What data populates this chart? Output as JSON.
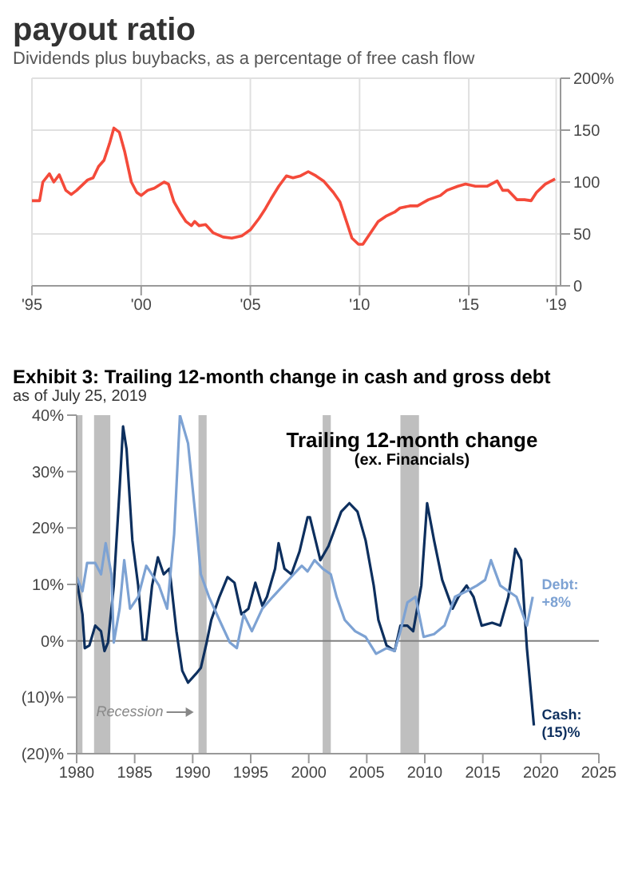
{
  "chart_data": [
    {
      "type": "line",
      "title": "payout ratio",
      "subtitle": "Dividends plus buybacks, as a percentage of free cash flow",
      "color": "#f44a3a",
      "marker": "none",
      "line_style": "solid",
      "grid": true,
      "xlim": [
        1995,
        2019.2
      ],
      "xticks": [
        {
          "value": 1995,
          "label": "'95"
        },
        {
          "value": 2000,
          "label": "'00"
        },
        {
          "value": 2005,
          "label": "'05"
        },
        {
          "value": 2010,
          "label": "'10"
        },
        {
          "value": 2015,
          "label": "'15"
        },
        {
          "value": 2019,
          "label": "'19"
        }
      ],
      "ylim": [
        0,
        200
      ],
      "yticks": [
        0,
        50,
        100,
        150,
        {
          "value": 200,
          "label": "200%"
        }
      ],
      "x": [
        1995.0,
        1995.35,
        1995.5,
        1995.8,
        1996.0,
        1996.25,
        1996.55,
        1996.8,
        1997.05,
        1997.55,
        1997.8,
        1998.05,
        1998.3,
        1998.55,
        1998.75,
        1999.0,
        1999.25,
        1999.55,
        1999.8,
        2000.0,
        2000.3,
        2000.6,
        2001.05,
        2001.25,
        2001.5,
        2001.8,
        2002.05,
        2002.3,
        2002.45,
        2002.65,
        2002.95,
        2003.3,
        2003.75,
        2004.15,
        2004.6,
        2005.0,
        2005.4,
        2005.65,
        2005.95,
        2006.3,
        2006.65,
        2006.95,
        2007.3,
        2007.65,
        2008.0,
        2008.35,
        2008.8,
        2009.1,
        2009.4,
        2009.65,
        2009.95,
        2010.15,
        2010.5,
        2010.85,
        2011.2,
        2011.6,
        2011.85,
        2012.3,
        2012.65,
        2013.15,
        2013.7,
        2014.0,
        2014.5,
        2014.85,
        2015.3,
        2015.85,
        2016.3,
        2016.55,
        2016.8,
        2017.2,
        2017.55,
        2017.85,
        2018.1,
        2018.5,
        2018.95
      ],
      "values": [
        82,
        82,
        100,
        108,
        100,
        107,
        92,
        88,
        92,
        102,
        104,
        115,
        121,
        137,
        152,
        148,
        129,
        100,
        90,
        87,
        92,
        94,
        100,
        98,
        81,
        70,
        62,
        58,
        62,
        58,
        59,
        51,
        47,
        46,
        48,
        54,
        65,
        73,
        84,
        96,
        106,
        104,
        106,
        110,
        106,
        101,
        90,
        81,
        62,
        46,
        40,
        40,
        51,
        62,
        67,
        71,
        75,
        77,
        77,
        83,
        87,
        92,
        96,
        98,
        96,
        96,
        101,
        92,
        92,
        83,
        83,
        82,
        90,
        98,
        103
      ]
    },
    {
      "type": "line",
      "title": "Exhibit 3: Trailing 12-month change in cash and gross debt",
      "subtitle": "as of July 25, 2019",
      "marker": "none",
      "line_style": "solid",
      "annotations": [
        {
          "text": "Cash: (15)%",
          "x": 2019.8,
          "y": -15
        },
        {
          "text": "Debt: +8%",
          "x": 2019.8,
          "y": 8
        },
        "Trailing 12-month change",
        "(ex. Financials)"
      ],
      "xlim": [
        1980,
        2025
      ],
      "xticks": [
        1980,
        1985,
        1990,
        1995,
        2000,
        2005,
        2010,
        2015,
        2020,
        2025
      ],
      "ylim": [
        -20,
        40
      ],
      "yticks": [
        {
          "value": -20,
          "label": "(20)%"
        },
        {
          "value": -10,
          "label": "(10)%"
        },
        {
          "value": 0,
          "label": "0%"
        },
        {
          "value": 10,
          "label": "10%"
        },
        {
          "value": 20,
          "label": "20%"
        },
        {
          "value": 30,
          "label": "30%"
        },
        {
          "value": 40,
          "label": "40%"
        }
      ],
      "ref_lines": [
        {
          "axis": "y",
          "value": 0,
          "color": "#808080"
        }
      ],
      "bands": [
        {
          "axis": "x",
          "from": 1980.0,
          "to": 1980.5,
          "color": "#bfbfbf"
        },
        {
          "axis": "x",
          "from": 1981.5,
          "to": 1982.9,
          "color": "#bfbfbf"
        },
        {
          "axis": "x",
          "from": 1990.5,
          "to": 1991.2,
          "color": "#bfbfbf",
          "label": "Recession"
        },
        {
          "axis": "x",
          "from": 2001.2,
          "to": 2001.9,
          "color": "#bfbfbf"
        },
        {
          "axis": "x",
          "from": 2007.9,
          "to": 2009.5,
          "color": "#bfbfbf"
        }
      ],
      "series": [
        {
          "color": "#0d2f5e",
          "x": [
            1980.0,
            1980.5,
            1980.7,
            1981.1,
            1981.6,
            1982.1,
            1982.4,
            1982.7,
            1983.2,
            1983.7,
            1984.0,
            1984.3,
            1984.8,
            1985.3,
            1985.7,
            1986.0,
            1986.5,
            1987.0,
            1987.5,
            1988.0,
            1988.6,
            1989.1,
            1989.6,
            1990.3,
            1990.7,
            1991.2,
            1991.6,
            1992.3,
            1993.0,
            1993.6,
            1994.2,
            1994.8,
            1995.4,
            1996.0,
            1996.4,
            1997.1,
            1997.4,
            1997.9,
            1998.5,
            1999.2,
            1999.9,
            2000.1,
            2001.0,
            2001.7,
            2002.8,
            2003.5,
            2004.2,
            2004.9,
            2005.6,
            2006.0,
            2006.7,
            2007.4,
            2007.9,
            2008.5,
            2009.0,
            2009.7,
            2010.2,
            2010.8,
            2011.5,
            2012.4,
            2012.9,
            2013.6,
            2014.2,
            2014.9,
            2015.8,
            2016.5,
            2017.2,
            2017.8,
            2018.3,
            2018.8,
            2019.2,
            2019.4
          ],
          "values": [
            10.8,
            4.7,
            -1.3,
            -0.8,
            2.7,
            1.7,
            -1.8,
            -0.3,
            9.8,
            26.9,
            38,
            34,
            17.8,
            9.8,
            0.2,
            0.2,
            9.8,
            14.8,
            11.8,
            12.8,
            1.7,
            -5.3,
            -7.4,
            -5.8,
            -4.8,
            -0.3,
            3.7,
            7.8,
            11.3,
            10.3,
            4.7,
            5.7,
            10.3,
            6.2,
            7.8,
            12.8,
            17.3,
            12.8,
            11.8,
            15.8,
            21.9,
            21.9,
            14.3,
            16.8,
            22.9,
            24.4,
            22.9,
            17.8,
            9.8,
            3.7,
            -0.8,
            -1.8,
            2.7,
            2.7,
            1.7,
            9.8,
            24.4,
            17.8,
            10.8,
            5.7,
            7.8,
            9.8,
            7.8,
            2.7,
            3.2,
            2.7,
            7.8,
            16.3,
            14.3,
            -1.3,
            -10.4,
            -15
          ]
        },
        {
          "color": "#7da2d3",
          "x": [
            1980.0,
            1980.5,
            1980.9,
            1981.6,
            1982.1,
            1982.5,
            1983.0,
            1983.2,
            1983.7,
            1984.1,
            1984.6,
            1985.3,
            1986.0,
            1987.1,
            1987.8,
            1988.4,
            1988.9,
            1989.6,
            1990.3,
            1990.7,
            1991.4,
            1992.3,
            1993.2,
            1993.8,
            1994.4,
            1995.1,
            1996.0,
            1996.9,
            1997.8,
            1998.7,
            1999.4,
            1999.9,
            2000.5,
            2001.2,
            2001.9,
            2002.4,
            2003.1,
            2004.0,
            2004.9,
            2005.8,
            2006.7,
            2007.4,
            2007.9,
            2008.5,
            2009.2,
            2009.9,
            2010.8,
            2011.7,
            2012.6,
            2013.6,
            2014.5,
            2015.2,
            2015.7,
            2016.5,
            2017.2,
            2017.9,
            2018.8,
            2019.3
          ],
          "values": [
            11.3,
            8.8,
            13.8,
            13.8,
            11.8,
            17.3,
            11.8,
            -0.3,
            5.7,
            14.3,
            5.7,
            7.8,
            13.3,
            9.8,
            5.7,
            18.9,
            40,
            35,
            20.9,
            11.8,
            7.8,
            3.7,
            -0.3,
            -1.3,
            4.7,
            1.7,
            5.7,
            7.8,
            9.8,
            11.8,
            13.3,
            12.3,
            14.3,
            12.8,
            11.8,
            7.8,
            3.7,
            1.7,
            0.7,
            -2.3,
            -1.3,
            -1.8,
            1.7,
            6.8,
            7.8,
            0.7,
            1.2,
            2.7,
            7.8,
            8.8,
            9.8,
            10.8,
            14.3,
            9.8,
            8.8,
            7.8,
            2.7,
            7.8
          ]
        }
      ]
    }
  ]
}
